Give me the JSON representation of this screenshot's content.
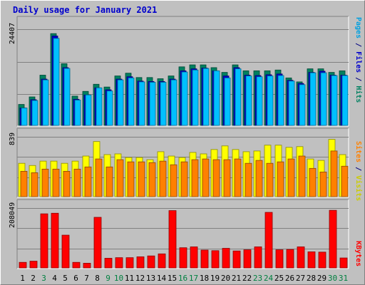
{
  "chart_data": {
    "type": "bar",
    "title": "Daily usage for January 2021",
    "categories": [
      "1",
      "2",
      "3",
      "4",
      "5",
      "6",
      "7",
      "8",
      "9",
      "10",
      "11",
      "12",
      "13",
      "14",
      "15",
      "16",
      "17",
      "18",
      "19",
      "20",
      "21",
      "22",
      "23",
      "24",
      "25",
      "26",
      "27",
      "28",
      "29",
      "30",
      "31"
    ],
    "weekend_days": [
      "3",
      "9",
      "10",
      "16",
      "17",
      "23",
      "24",
      "30",
      "31"
    ],
    "panels": [
      {
        "id": "hits_files_pages",
        "ymax_label": "24407",
        "ymax": 24407,
        "right_labels": [
          {
            "text": "Pages",
            "color": "#00a0e0"
          },
          {
            "text": " / ",
            "color": "#000080"
          },
          {
            "text": "Files",
            "color": "#0000cc"
          },
          {
            "text": " / ",
            "color": "#000080"
          },
          {
            "text": "Hits",
            "color": "#008060"
          }
        ],
        "series": [
          {
            "name": "Hits",
            "color": "#008060",
            "values": [
              5300,
              7200,
              12700,
              23200,
              15600,
              7400,
              8600,
              10400,
              9700,
              12500,
              13200,
              12100,
              12100,
              11800,
              12500,
              14800,
              15300,
              15300,
              14600,
              13400,
              15300,
              13800,
              13800,
              13800,
              14000,
              12000,
              11000,
              14300,
              14300,
              13400,
              13800
            ]
          },
          {
            "name": "Files",
            "color": "#0000cc",
            "values": [
              4400,
              6500,
              11700,
              22600,
              14600,
              6600,
              7700,
              9500,
              9000,
              11700,
              12300,
              11200,
              11100,
              11100,
              11700,
              13800,
              14300,
              14500,
              13800,
              12500,
              14600,
              12700,
              12600,
              12800,
              13000,
              11400,
              10600,
              13400,
              13700,
              12700,
              12700
            ]
          },
          {
            "name": "Pages",
            "color": "#00c0ff",
            "values": [
              4400,
              6300,
              11500,
              22000,
              14400,
              6400,
              7700,
              9500,
              8700,
              11500,
              12000,
              11000,
              10900,
              10900,
              11500,
              13500,
              14000,
              14400,
              13800,
              12000,
              14300,
              12500,
              12300,
              12500,
              12600,
              11200,
              10300,
              13300,
              13300,
              12600,
              12600
            ]
          }
        ]
      },
      {
        "id": "visits_sites",
        "ymax_label": "839",
        "ymax": 839,
        "right_labels": [
          {
            "text": "Sites",
            "color": "#ff8000"
          },
          {
            "text": " / ",
            "color": "#000080"
          },
          {
            "text": "Visits",
            "color": "#cccc00"
          }
        ],
        "series": [
          {
            "name": "Visits",
            "color": "#ffff00",
            "values": [
              460,
              430,
              490,
              490,
              460,
              490,
              560,
              760,
              580,
              590,
              540,
              540,
              510,
              620,
              560,
              540,
              610,
              590,
              650,
              700,
              650,
              620,
              630,
              710,
              710,
              680,
              690,
              520,
              500,
              790,
              580
            ]
          },
          {
            "name": "Sites",
            "color": "#ff8000",
            "values": [
              350,
              330,
              380,
              380,
              350,
              380,
              410,
              520,
              410,
              510,
              480,
              480,
              470,
              490,
              440,
              480,
              510,
              520,
              510,
              510,
              520,
              460,
              500,
              460,
              480,
              520,
              560,
              390,
              340,
              630,
              420
            ]
          }
        ]
      },
      {
        "id": "kbytes",
        "ymax_label": "208049",
        "ymax": 208049,
        "right_labels": [
          {
            "text": "KBytes",
            "color": "#ff0000"
          }
        ],
        "series": [
          {
            "name": "KBytes",
            "color": "#ff0000",
            "values": [
              19000,
              23000,
              185000,
              187000,
              112000,
              19000,
              16000,
              173000,
              33000,
              35000,
              35000,
              38000,
              41000,
              48000,
              196000,
              69000,
              72000,
              61000,
              59000,
              67000,
              58000,
              62000,
              72000,
              190000,
              62000,
              63000,
              72000,
              55000,
              54000,
              197000,
              34000
            ]
          }
        ]
      }
    ]
  }
}
